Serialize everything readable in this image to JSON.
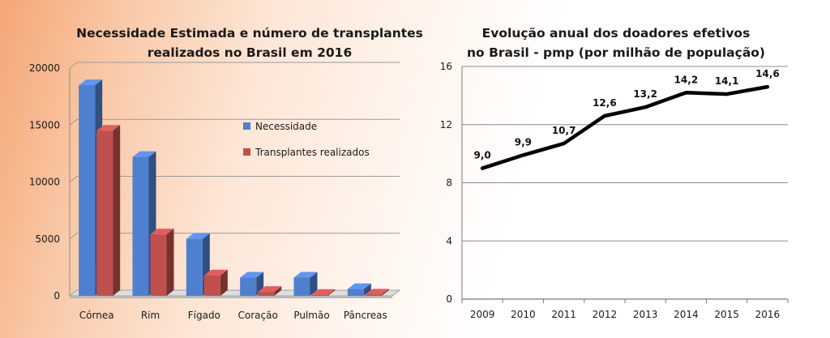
{
  "chart_data": [
    {
      "type": "bar",
      "title_lines": [
        "Necessidade Estimada e número de transplantes",
        "realizados no Brasil em 2016"
      ],
      "categories": [
        "Córnea",
        "Rim",
        "Fígado",
        "Coração",
        "Pulmão",
        "Pâncreas"
      ],
      "series": [
        {
          "name": "Necessidade",
          "color": "#4f7fcf",
          "values": [
            18500,
            12200,
            5000,
            1600,
            1600,
            600
          ]
        },
        {
          "name": "Transplantes realizados",
          "color": "#c0504d",
          "values": [
            14500,
            5400,
            1800,
            350,
            90,
            120
          ]
        }
      ],
      "yticks": [
        0,
        5000,
        10000,
        15000,
        20000
      ],
      "ylim": [
        0,
        20000
      ],
      "grid": true,
      "legend": "right-inside",
      "style": "3d"
    },
    {
      "type": "line",
      "title_lines": [
        "Evolução anual dos doadores efetivos",
        "no Brasil - pmp (por milhão de população)"
      ],
      "x": [
        "2009",
        "2010",
        "2011",
        "2012",
        "2013",
        "2014",
        "2015",
        "2016"
      ],
      "values": [
        9.0,
        9.9,
        10.7,
        12.6,
        13.2,
        14.2,
        14.1,
        14.6
      ],
      "labels": [
        "9,0",
        "9,9",
        "10,7",
        "12,6",
        "13,2",
        "14,2",
        "14,1",
        "14,6"
      ],
      "yticks": [
        "0",
        "4",
        "8",
        "12",
        "16"
      ],
      "ylim": [
        0,
        16
      ],
      "color": "#000000",
      "grid": true
    }
  ]
}
